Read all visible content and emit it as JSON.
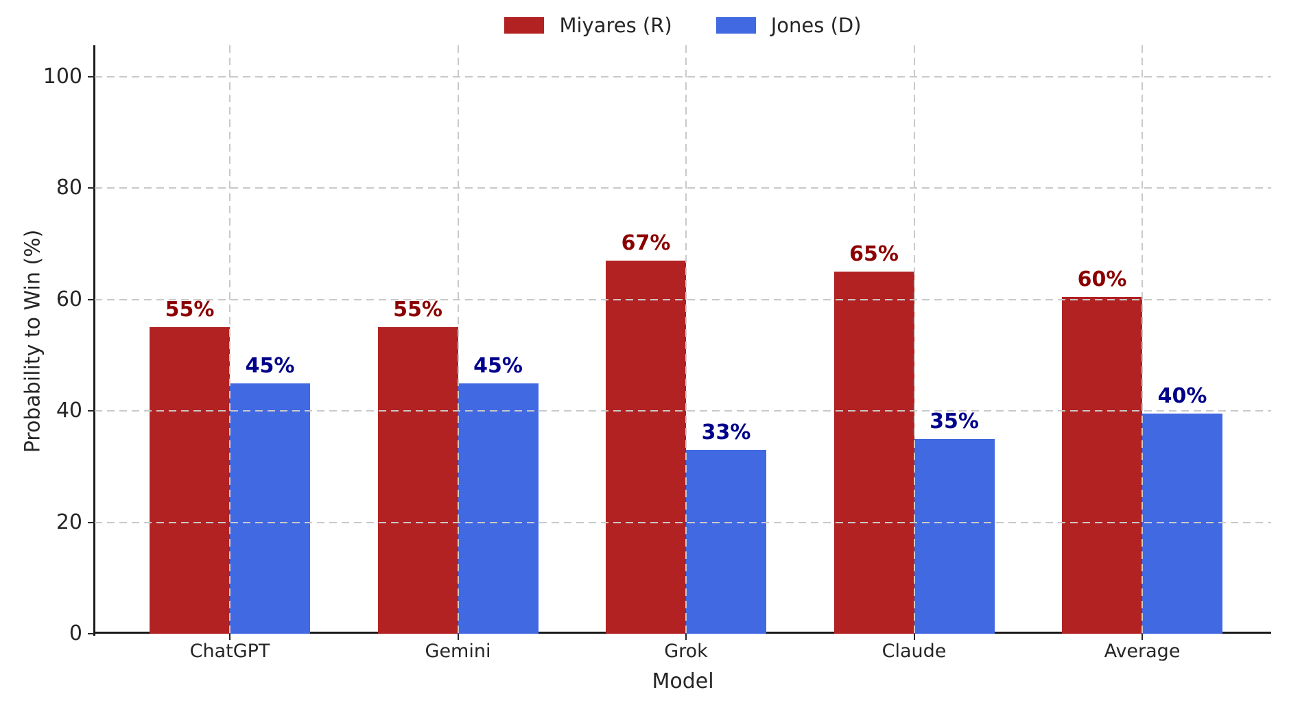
{
  "chart_data": {
    "type": "bar",
    "xlabel": "Model",
    "ylabel": "Probability to Win (%)",
    "categories": [
      "ChatGPT",
      "Gemini",
      "Grok",
      "Claude",
      "Average"
    ],
    "series": [
      {
        "name": "Miyares (R)",
        "color": "#b22222",
        "label_color": "#8b0000",
        "values": [
          55,
          55,
          67,
          65,
          60.5
        ],
        "labels": [
          "55%",
          "55%",
          "67%",
          "65%",
          "60%"
        ]
      },
      {
        "name": "Jones (D)",
        "color": "#4169e1",
        "label_color": "#00008b",
        "values": [
          45,
          45,
          33,
          35,
          39.5
        ],
        "labels": [
          "45%",
          "45%",
          "33%",
          "35%",
          "40%"
        ]
      }
    ],
    "yticks": [
      0,
      20,
      40,
      60,
      80,
      100
    ],
    "ytick_labels": [
      "0",
      "20",
      "40",
      "60",
      "80",
      "100"
    ],
    "ylim": [
      0,
      105.6
    ],
    "grid": "dashed, drawn above bars",
    "legend_position": "top center",
    "grid_color": "#c9c9c9",
    "axis_color": "#1a1a1a",
    "text_color": "#262626"
  }
}
